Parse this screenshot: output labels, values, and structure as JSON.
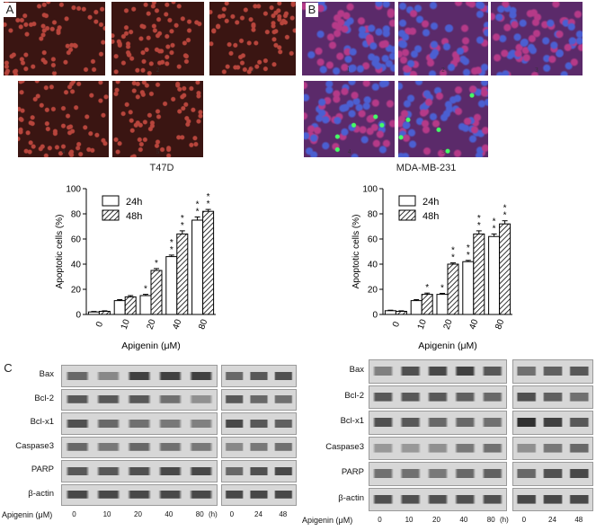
{
  "panels": {
    "a": {
      "letter": "A",
      "cell_line": "T47D",
      "image_numbers": [
        "1",
        "2",
        "3",
        "4",
        "5"
      ]
    },
    "b": {
      "letter": "B",
      "cell_line": "MDA-MB-231",
      "image_numbers": [
        "1",
        "2",
        "3",
        "4",
        "5"
      ]
    },
    "c": {
      "letter": "C"
    }
  },
  "colors": {
    "t47d_bg": "#3a1512",
    "t47d_cells": "#b8453c",
    "mda_bg": "#5b2a6a",
    "mda_cells": "#b53a88",
    "mda_nuclei": "#4b5fd1",
    "apoptotic": "#44ff66"
  },
  "chart_data": [
    {
      "type": "bar",
      "categories": [
        "0",
        "10",
        "20",
        "40",
        "80"
      ],
      "xlabel": "Apigenin (μM)",
      "ylabel": "Apoptotic cells (%)",
      "ylim": [
        0,
        100
      ],
      "yticks": [
        "0",
        "20",
        "40",
        "60",
        "80",
        "100"
      ],
      "series": [
        {
          "name": "24h",
          "values": [
            2,
            11,
            15,
            46,
            75
          ],
          "errors": [
            0.4,
            0.8,
            1.0,
            1.2,
            2.5
          ],
          "sig": [
            "",
            "",
            "*",
            "**",
            "**"
          ]
        },
        {
          "name": "48h",
          "values": [
            2.5,
            14,
            35,
            64,
            82
          ],
          "errors": [
            0.4,
            1.0,
            1.5,
            2.5,
            1.5
          ],
          "sig": [
            "",
            "",
            "*",
            "**",
            "**"
          ]
        }
      ]
    },
    {
      "type": "bar",
      "categories": [
        "0",
        "10",
        "20",
        "40",
        "80"
      ],
      "xlabel": "Apigenin (μM)",
      "ylabel": "Apoptotic cells (%)",
      "ylim": [
        0,
        100
      ],
      "yticks": [
        "0",
        "20",
        "40",
        "60",
        "80",
        "100"
      ],
      "series": [
        {
          "name": "24h",
          "values": [
            3,
            11,
            16,
            42,
            62
          ],
          "errors": [
            0.4,
            0.8,
            0.8,
            1.0,
            2.0
          ],
          "sig": [
            "",
            "",
            "*",
            "**",
            "**"
          ]
        },
        {
          "name": "48h",
          "values": [
            2.5,
            16,
            40,
            64,
            72
          ],
          "errors": [
            0.4,
            1.0,
            1.0,
            2.5,
            2.5
          ],
          "sig": [
            "",
            "*",
            "**",
            "**",
            "**"
          ]
        }
      ]
    }
  ],
  "western": {
    "left": {
      "proteins": [
        "Bax",
        "Bcl-2",
        "Bcl-x1",
        "Caspase3",
        "PARP",
        "β-actin"
      ],
      "dose_label": "Apigenin (μM)",
      "doses": [
        "0",
        "10",
        "20",
        "40",
        "80"
      ],
      "time_unit": "(h)",
      "times": [
        "0",
        "24",
        "48"
      ]
    },
    "right": {
      "proteins": [
        "Bax",
        "Bcl-2",
        "Bcl-x1",
        "Caspase3",
        "PARP",
        "β-actin"
      ],
      "dose_label": "Apigenin (μM)",
      "doses": [
        "0",
        "10",
        "20",
        "40",
        "80"
      ],
      "time_unit": "(h)",
      "times": [
        "0",
        "24",
        "48"
      ]
    }
  }
}
